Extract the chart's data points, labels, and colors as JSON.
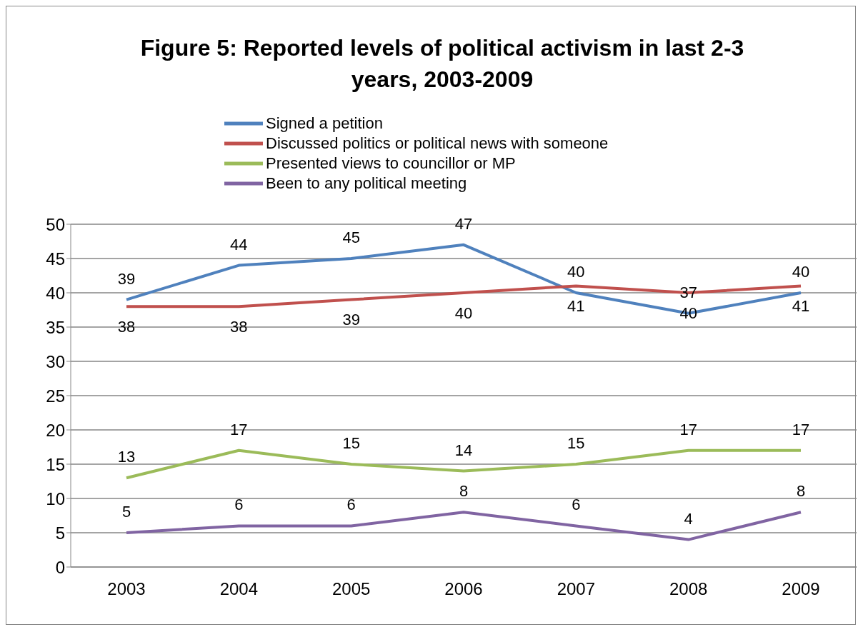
{
  "chart_data": {
    "type": "line",
    "title": "Figure 5: Reported levels of political activism in last 2-3 years, 2003-2009",
    "categories": [
      "2003",
      "2004",
      "2005",
      "2006",
      "2007",
      "2008",
      "2009"
    ],
    "series": [
      {
        "name": "Signed a petition",
        "color": "#4f81bd",
        "values": [
          39,
          44,
          45,
          47,
          40,
          37,
          40
        ]
      },
      {
        "name": "Discussed politics or political news with someone",
        "color": "#c0504d",
        "values": [
          38,
          38,
          39,
          40,
          41,
          40,
          41
        ]
      },
      {
        "name": "Presented views to councillor or MP",
        "color": "#9bbb59",
        "values": [
          13,
          17,
          15,
          14,
          15,
          17,
          17
        ]
      },
      {
        "name": "Been to any political meeting",
        "color": "#8064a2",
        "values": [
          5,
          6,
          6,
          8,
          6,
          4,
          8
        ]
      }
    ],
    "ylim": [
      0,
      50
    ],
    "yticks": [
      0,
      5,
      10,
      15,
      20,
      25,
      30,
      35,
      40,
      45,
      50
    ],
    "grid": "y",
    "legend": "top",
    "marker": "none",
    "line_style": "solid",
    "data_labels": true
  }
}
